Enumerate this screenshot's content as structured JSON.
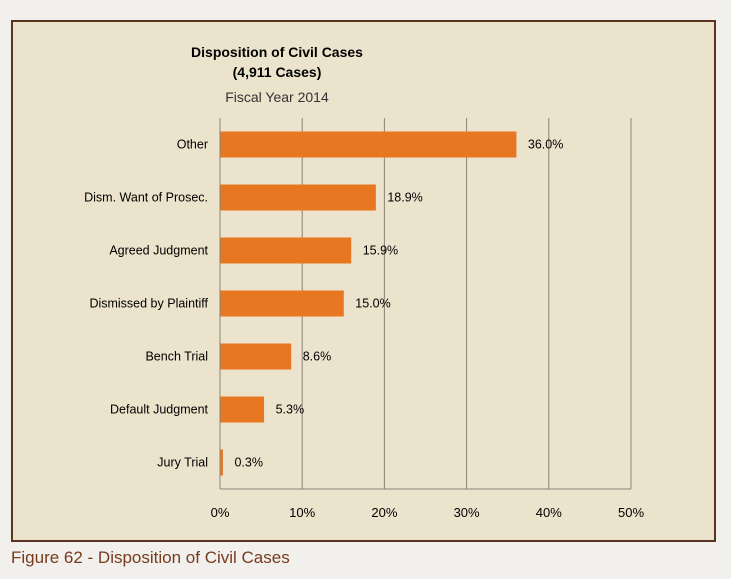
{
  "caption": "Figure 62 - Disposition of Civil Cases",
  "chart_data": {
    "type": "bar",
    "orientation": "horizontal",
    "title": "Disposition of Civil Cases",
    "title_line2": "(4,911 Cases)",
    "subtitle": "Fiscal Year 2014",
    "categories": [
      "Other",
      "Dism. Want of Prosec.",
      "Agreed Judgment",
      "Dismissed by Plaintiff",
      "Bench Trial",
      "Default Judgment",
      "Jury Trial"
    ],
    "values": [
      36.0,
      18.9,
      15.9,
      15.0,
      8.6,
      5.3,
      0.3
    ],
    "data_labels": [
      "36.0%",
      "18.9%",
      "15.9%",
      "15.0%",
      "8.6%",
      "5.3%",
      "0.3%"
    ],
    "xlim": [
      0,
      50
    ],
    "xticks": [
      "0%",
      "10%",
      "20%",
      "30%",
      "40%",
      "50%"
    ],
    "grid": true,
    "bar_color": "#e87722",
    "background_color": "#ece3cc"
  }
}
